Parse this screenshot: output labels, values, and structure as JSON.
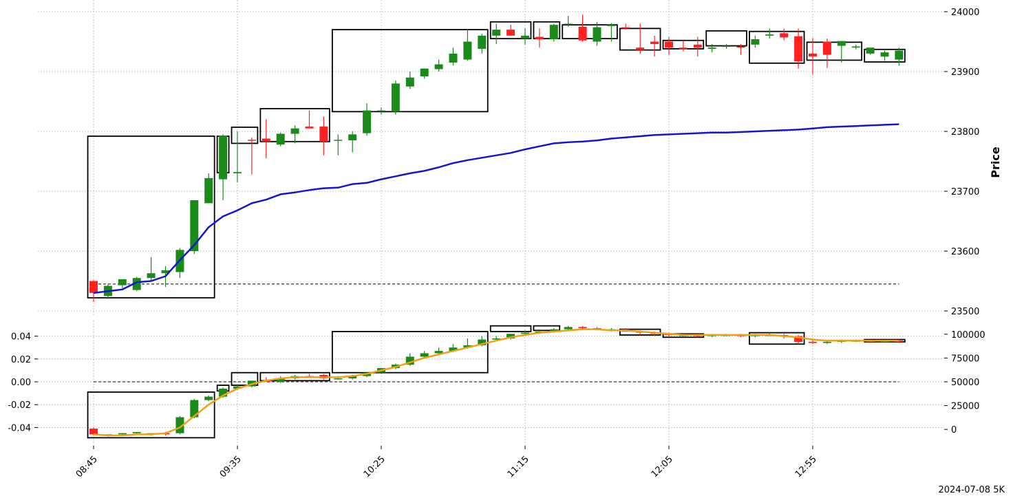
{
  "chart_data": [
    {
      "type": "candlestick",
      "panel": "price",
      "ylabel": "Price",
      "ylim": [
        23500,
        24000
      ],
      "yticks": [
        23500,
        23600,
        23700,
        23800,
        23900,
        24000
      ],
      "xticks": [
        "08:45",
        "09:35",
        "10:25",
        "11:15",
        "12:05",
        "12:55"
      ],
      "colors": {
        "up": "#1a8a1a",
        "down": "#ff2020",
        "ma": "#1515d0",
        "box": "#000000"
      },
      "reference_line": 23545,
      "x": [
        "08:45",
        "08:50",
        "08:55",
        "09:00",
        "09:05",
        "09:10",
        "09:15",
        "09:20",
        "09:25",
        "09:30",
        "09:35",
        "09:40",
        "09:45",
        "09:50",
        "09:55",
        "10:00",
        "10:05",
        "10:10",
        "10:15",
        "10:20",
        "10:25",
        "10:30",
        "10:35",
        "10:40",
        "10:45",
        "10:50",
        "10:55",
        "11:00",
        "11:05",
        "11:10",
        "11:15",
        "11:20",
        "11:25",
        "11:30",
        "11:35",
        "11:40",
        "11:45",
        "11:50",
        "11:55",
        "12:00",
        "12:05",
        "12:10",
        "12:15",
        "12:20",
        "12:25",
        "12:30",
        "12:35",
        "12:40",
        "12:45",
        "12:50",
        "12:55",
        "13:00",
        "13:05",
        "13:10",
        "13:15",
        "13:20",
        "13:25"
      ],
      "open": [
        23550,
        23525,
        23543,
        23535,
        23555,
        23563,
        23565,
        23600,
        23680,
        23720,
        23730,
        23786,
        23788,
        23778,
        23796,
        23808,
        23808,
        23785,
        23785,
        23797,
        23835,
        23833,
        23875,
        23892,
        23904,
        23915,
        23920,
        23938,
        23960,
        23970,
        23955,
        23958,
        23954,
        23980,
        23975,
        23950,
        23976,
        23974,
        23940,
        23950,
        23950,
        23940,
        23945,
        23938,
        23942,
        23942,
        23945,
        23960,
        23964,
        23959,
        23930,
        23950,
        23943,
        23940,
        23930,
        23925,
        23920
      ],
      "high": [
        23552,
        23545,
        23548,
        23557,
        23590,
        23575,
        23605,
        23685,
        23730,
        23795,
        23800,
        23790,
        23820,
        23798,
        23810,
        23835,
        23825,
        23795,
        23800,
        23847,
        23840,
        23885,
        23900,
        23905,
        23920,
        23940,
        23970,
        23963,
        23980,
        23978,
        23972,
        23972,
        23980,
        23993,
        23995,
        23983,
        23981,
        23980,
        23980,
        23960,
        23958,
        23952,
        23958,
        23946,
        23946,
        23946,
        23960,
        23972,
        23972,
        23972,
        23956,
        23955,
        23947,
        23945,
        23935,
        23935,
        23940
      ],
      "low": [
        23515,
        23520,
        23538,
        23533,
        23550,
        23540,
        23555,
        23595,
        23680,
        23685,
        23715,
        23728,
        23755,
        23775,
        23780,
        23806,
        23760,
        23760,
        23765,
        23793,
        23828,
        23828,
        23871,
        23888,
        23900,
        23910,
        23918,
        23930,
        23946,
        23963,
        23945,
        23940,
        23950,
        23975,
        23950,
        23943,
        23950,
        23970,
        23930,
        23925,
        23928,
        23934,
        23925,
        23932,
        23938,
        23928,
        23940,
        23955,
        23952,
        23905,
        23895,
        23906,
        23915,
        23937,
        23928,
        23918,
        23910
      ],
      "close": [
        23530,
        23542,
        23553,
        23555,
        23563,
        23568,
        23602,
        23685,
        23722,
        23793,
        23732,
        23785,
        23783,
        23796,
        23805,
        23805,
        23783,
        23786,
        23795,
        23835,
        23835,
        23880,
        23890,
        23905,
        23912,
        23930,
        23950,
        23960,
        23970,
        23960,
        23960,
        23954,
        23978,
        23980,
        23952,
        23974,
        23978,
        23973,
        23936,
        23946,
        23940,
        23937,
        23940,
        23940,
        23943,
        23940,
        23954,
        23962,
        23957,
        23917,
        23925,
        23928,
        23951,
        23942,
        23940,
        23932,
        23935
      ],
      "ma": [
        23530,
        23533,
        23536,
        23548,
        23550,
        23558,
        23585,
        23610,
        23640,
        23658,
        23668,
        23680,
        23686,
        23695,
        23698,
        23702,
        23705,
        23706,
        23712,
        23714,
        23720,
        23725,
        23730,
        23734,
        23740,
        23747,
        23752,
        23756,
        23760,
        23764,
        23770,
        23775,
        23780,
        23782,
        23783,
        23785,
        23788,
        23790,
        23792,
        23794,
        23795,
        23796,
        23797,
        23798,
        23798,
        23799,
        23800,
        23801,
        23802,
        23803,
        23805,
        23807,
        23808,
        23809,
        23810,
        23811,
        23812
      ],
      "boxes": [
        {
          "start": "08:45",
          "end": "09:25",
          "high": 23792,
          "low": 23522
        },
        {
          "start": "09:30",
          "end": "09:30",
          "high": 23792,
          "low": 23731
        },
        {
          "start": "09:35",
          "end": "09:40",
          "high": 23807,
          "low": 23780
        },
        {
          "start": "09:45",
          "end": "10:05",
          "high": 23838,
          "low": 23783
        },
        {
          "start": "10:10",
          "end": "11:00",
          "high": 23970,
          "low": 23833
        },
        {
          "start": "11:05",
          "end": "11:15",
          "high": 23983,
          "low": 23955
        },
        {
          "start": "11:20",
          "end": "11:25",
          "high": 23983,
          "low": 23955
        },
        {
          "start": "11:30",
          "end": "11:45",
          "high": 23978,
          "low": 23955
        },
        {
          "start": "11:50",
          "end": "12:00",
          "high": 23972,
          "low": 23936
        },
        {
          "start": "12:05",
          "end": "12:15",
          "high": 23952,
          "low": 23938
        },
        {
          "start": "12:20",
          "end": "12:30",
          "high": 23968,
          "low": 23943
        },
        {
          "start": "12:35",
          "end": "12:50",
          "high": 23967,
          "low": 23914
        },
        {
          "start": "12:55",
          "end": "13:10",
          "high": 23949,
          "low": 23919
        },
        {
          "start": "13:15",
          "end": "13:25",
          "high": 23937,
          "low": 23916
        }
      ]
    },
    {
      "type": "candlestick",
      "panel": "indicator",
      "left_ylim": [
        -0.05,
        0.05
      ],
      "left_yticks": [
        "-0.04",
        "-0.02",
        "0.00",
        "0.02",
        "0.04"
      ],
      "right_ylim": [
        -10000,
        110000
      ],
      "right_yticks": [
        "0",
        "25000",
        "50000",
        "75000",
        "100000"
      ],
      "colors": {
        "up": "#1a8a1a",
        "down": "#ff2020",
        "ma": "#f0a010",
        "box": "#000000"
      },
      "reference_line": 0.0,
      "open": [
        -0.041,
        -0.047,
        -0.046,
        -0.045,
        -0.046,
        -0.045,
        -0.045,
        -0.031,
        -0.016,
        -0.013,
        -0.006,
        -0.004,
        0.001,
        0.0,
        0.003,
        0.005,
        0.006,
        0.003,
        0.003,
        0.005,
        0.008,
        0.012,
        0.015,
        0.022,
        0.025,
        0.027,
        0.03,
        0.032,
        0.037,
        0.038,
        0.042,
        0.043,
        0.044,
        0.046,
        0.048,
        0.047,
        0.046,
        0.046,
        0.044,
        0.043,
        0.042,
        0.041,
        0.041,
        0.04,
        0.041,
        0.041,
        0.04,
        0.041,
        0.041,
        0.04,
        0.035,
        0.034,
        0.035,
        0.036,
        0.036,
        0.035,
        0.036
      ],
      "high": [
        -0.04,
        -0.046,
        -0.045,
        -0.044,
        -0.045,
        -0.044,
        -0.03,
        -0.015,
        -0.012,
        -0.005,
        -0.003,
        0.001,
        0.004,
        0.005,
        0.006,
        0.007,
        0.007,
        0.005,
        0.006,
        0.008,
        0.012,
        0.016,
        0.025,
        0.027,
        0.03,
        0.033,
        0.038,
        0.04,
        0.04,
        0.042,
        0.045,
        0.046,
        0.047,
        0.049,
        0.049,
        0.048,
        0.047,
        0.047,
        0.045,
        0.044,
        0.043,
        0.042,
        0.042,
        0.042,
        0.042,
        0.042,
        0.042,
        0.043,
        0.042,
        0.041,
        0.037,
        0.036,
        0.037,
        0.037,
        0.037,
        0.037,
        0.037
      ],
      "low": [
        -0.047,
        -0.048,
        -0.047,
        -0.046,
        -0.047,
        -0.047,
        -0.046,
        -0.032,
        -0.017,
        -0.014,
        -0.007,
        -0.005,
        0.0,
        -0.001,
        0.002,
        0.004,
        0.002,
        0.002,
        0.002,
        0.004,
        0.007,
        0.011,
        0.014,
        0.021,
        0.024,
        0.026,
        0.029,
        0.031,
        0.036,
        0.037,
        0.041,
        0.042,
        0.043,
        0.045,
        0.046,
        0.045,
        0.044,
        0.044,
        0.041,
        0.04,
        0.039,
        0.04,
        0.039,
        0.039,
        0.04,
        0.039,
        0.039,
        0.04,
        0.038,
        0.033,
        0.033,
        0.033,
        0.034,
        0.035,
        0.035,
        0.034,
        0.034
      ],
      "close": [
        -0.046,
        -0.046,
        -0.045,
        -0.044,
        -0.045,
        -0.046,
        -0.031,
        -0.016,
        -0.013,
        -0.006,
        -0.004,
        0.001,
        0.0,
        0.003,
        0.005,
        0.004,
        0.003,
        0.003,
        0.005,
        0.008,
        0.012,
        0.015,
        0.022,
        0.025,
        0.027,
        0.03,
        0.032,
        0.037,
        0.038,
        0.042,
        0.043,
        0.044,
        0.046,
        0.048,
        0.047,
        0.046,
        0.046,
        0.044,
        0.043,
        0.042,
        0.041,
        0.041,
        0.04,
        0.041,
        0.041,
        0.04,
        0.041,
        0.041,
        0.04,
        0.035,
        0.034,
        0.035,
        0.036,
        0.036,
        0.035,
        0.036,
        0.035
      ],
      "ma": [
        -0.046,
        -0.047,
        -0.047,
        -0.046,
        -0.046,
        -0.045,
        -0.04,
        -0.03,
        -0.02,
        -0.012,
        -0.006,
        -0.002,
        0.001,
        0.003,
        0.004,
        0.004,
        0.004,
        0.004,
        0.005,
        0.007,
        0.01,
        0.013,
        0.017,
        0.021,
        0.024,
        0.027,
        0.03,
        0.033,
        0.036,
        0.039,
        0.041,
        0.043,
        0.044,
        0.045,
        0.046,
        0.046,
        0.045,
        0.045,
        0.044,
        0.043,
        0.042,
        0.041,
        0.041,
        0.041,
        0.041,
        0.041,
        0.041,
        0.041,
        0.04,
        0.039,
        0.037,
        0.036,
        0.036,
        0.036,
        0.036,
        0.036,
        0.036
      ],
      "boxes": [
        {
          "start": "08:45",
          "end": "09:25",
          "high": -0.009,
          "low": -0.049
        },
        {
          "start": "09:30",
          "end": "09:30",
          "high": -0.003,
          "low": -0.008
        },
        {
          "start": "09:35",
          "end": "09:40",
          "high": 0.008,
          "low": -0.003
        },
        {
          "start": "09:45",
          "end": "10:05",
          "high": 0.008,
          "low": 0.001
        },
        {
          "start": "10:10",
          "end": "11:00",
          "high": 0.044,
          "low": 0.008
        },
        {
          "start": "11:05",
          "end": "11:15",
          "high": 0.049,
          "low": 0.044
        },
        {
          "start": "11:20",
          "end": "11:25",
          "high": 0.049,
          "low": 0.045
        },
        {
          "start": "11:50",
          "end": "12:00",
          "high": 0.046,
          "low": 0.041
        },
        {
          "start": "12:05",
          "end": "12:15",
          "high": 0.042,
          "low": 0.039
        },
        {
          "start": "12:35",
          "end": "12:50",
          "high": 0.043,
          "low": 0.033
        },
        {
          "start": "13:15",
          "end": "13:25",
          "high": 0.037,
          "low": 0.035
        }
      ]
    }
  ],
  "footer": "2024-07-08 5K"
}
